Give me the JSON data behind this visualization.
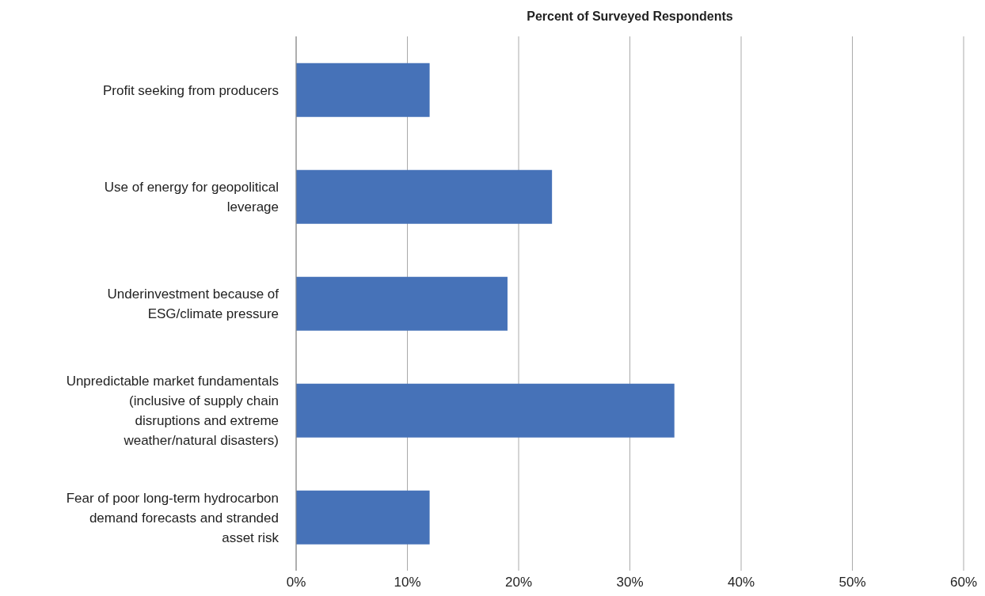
{
  "chart_data": {
    "type": "bar",
    "orientation": "horizontal",
    "title": "Percent of Surveyed Respondents",
    "categories": [
      "Profit seeking from producers",
      "Use of energy for geopolitical leverage",
      "Underinvestment because of ESG/climate pressure",
      "Unpredictable market fundamentals (inclusive of supply chain disruptions and extreme weather/natural disasters)",
      "Fear of poor long-term hydrocarbon demand forecasts and stranded asset risk"
    ],
    "values": [
      12,
      23,
      19,
      34,
      12
    ],
    "color": "#4672b8",
    "xlim": [
      0,
      60
    ],
    "xticks": [
      {
        "value": 0,
        "label": "0%"
      },
      {
        "value": 10,
        "label": "10%"
      },
      {
        "value": 20,
        "label": "20%"
      },
      {
        "value": 30,
        "label": "30%"
      },
      {
        "value": 40,
        "label": "40%"
      },
      {
        "value": 50,
        "label": "50%"
      },
      {
        "value": 60,
        "label": "60%"
      }
    ],
    "grid": "x"
  }
}
